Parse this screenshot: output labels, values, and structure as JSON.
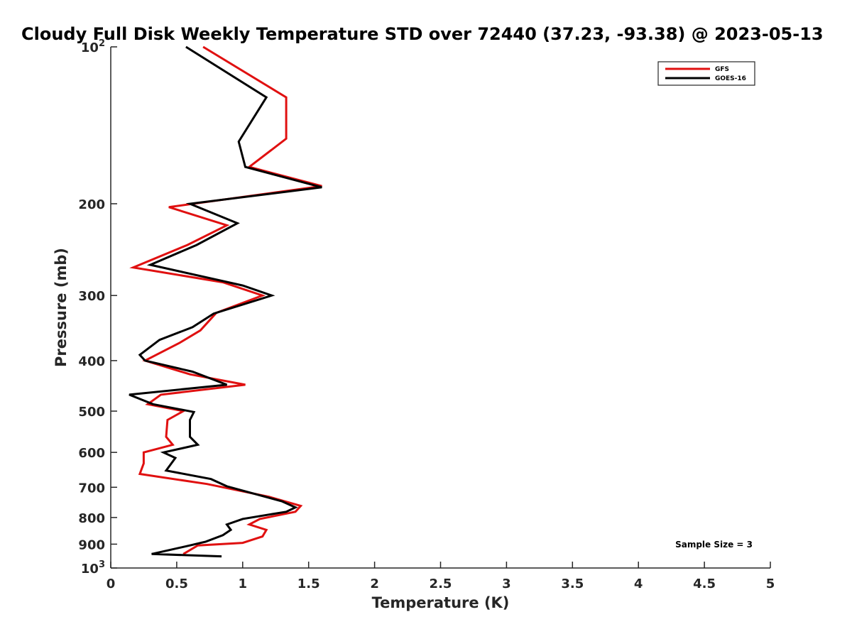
{
  "chart_data": {
    "type": "line",
    "title": "Cloudy Full Disk Weekly Temperature STD over 72440 (37.23, -93.38) @ 2023-05-13",
    "xlabel": "Temperature (K)",
    "ylabel": "Pressure (mb)",
    "xlim": [
      0,
      5
    ],
    "ylim": [
      100,
      1000
    ],
    "y_scale": "log",
    "y_reversed": true,
    "x_ticks": [
      {
        "value": 0,
        "label": "0"
      },
      {
        "value": 0.5,
        "label": "0.5"
      },
      {
        "value": 1,
        "label": "1"
      },
      {
        "value": 1.5,
        "label": "1.5"
      },
      {
        "value": 2,
        "label": "2"
      },
      {
        "value": 2.5,
        "label": "2.5"
      },
      {
        "value": 3,
        "label": "3"
      },
      {
        "value": 3.5,
        "label": "3.5"
      },
      {
        "value": 4,
        "label": "4"
      },
      {
        "value": 4.5,
        "label": "4.5"
      },
      {
        "value": 5,
        "label": "5"
      }
    ],
    "y_ticks": [
      {
        "value": 100,
        "label": "10",
        "sup": "2"
      },
      {
        "value": 200,
        "label": "200"
      },
      {
        "value": 300,
        "label": "300"
      },
      {
        "value": 400,
        "label": "400"
      },
      {
        "value": 500,
        "label": "500"
      },
      {
        "value": 600,
        "label": "600"
      },
      {
        "value": 700,
        "label": "700"
      },
      {
        "value": 800,
        "label": "800"
      },
      {
        "value": 900,
        "label": "900"
      },
      {
        "value": 1000,
        "label": "10",
        "sup": "3"
      }
    ],
    "grid": false,
    "legend_position": "top-right",
    "annotation": "Sample Size = 3",
    "series": [
      {
        "name": "GFS",
        "color": "#e01010",
        "points": [
          {
            "x": 0.7,
            "p": 100
          },
          {
            "x": 1.33,
            "p": 125
          },
          {
            "x": 1.33,
            "p": 150
          },
          {
            "x": 1.05,
            "p": 170
          },
          {
            "x": 1.6,
            "p": 185
          },
          {
            "x": 0.44,
            "p": 203
          },
          {
            "x": 0.88,
            "p": 220
          },
          {
            "x": 0.58,
            "p": 240
          },
          {
            "x": 0.17,
            "p": 265
          },
          {
            "x": 0.85,
            "p": 283
          },
          {
            "x": 1.15,
            "p": 300
          },
          {
            "x": 0.8,
            "p": 324
          },
          {
            "x": 0.68,
            "p": 350
          },
          {
            "x": 0.52,
            "p": 370
          },
          {
            "x": 0.26,
            "p": 400
          },
          {
            "x": 0.6,
            "p": 425
          },
          {
            "x": 1.02,
            "p": 445
          },
          {
            "x": 0.38,
            "p": 465
          },
          {
            "x": 0.28,
            "p": 485
          },
          {
            "x": 0.55,
            "p": 500
          },
          {
            "x": 0.43,
            "p": 520
          },
          {
            "x": 0.42,
            "p": 560
          },
          {
            "x": 0.47,
            "p": 580
          },
          {
            "x": 0.25,
            "p": 600
          },
          {
            "x": 0.25,
            "p": 630
          },
          {
            "x": 0.22,
            "p": 660
          },
          {
            "x": 0.73,
            "p": 690
          },
          {
            "x": 1.2,
            "p": 730
          },
          {
            "x": 1.44,
            "p": 760
          },
          {
            "x": 1.4,
            "p": 780
          },
          {
            "x": 1.13,
            "p": 805
          },
          {
            "x": 1.05,
            "p": 825
          },
          {
            "x": 1.18,
            "p": 845
          },
          {
            "x": 1.15,
            "p": 870
          },
          {
            "x": 1.0,
            "p": 895
          },
          {
            "x": 0.66,
            "p": 905
          },
          {
            "x": 0.55,
            "p": 940
          }
        ]
      },
      {
        "name": "GOES-16",
        "color": "#000000",
        "points": [
          {
            "x": 0.57,
            "p": 100
          },
          {
            "x": 1.18,
            "p": 125
          },
          {
            "x": 0.97,
            "p": 152
          },
          {
            "x": 1.02,
            "p": 170
          },
          {
            "x": 1.6,
            "p": 186
          },
          {
            "x": 0.6,
            "p": 200
          },
          {
            "x": 0.96,
            "p": 218
          },
          {
            "x": 0.65,
            "p": 240
          },
          {
            "x": 0.3,
            "p": 262
          },
          {
            "x": 1.0,
            "p": 287
          },
          {
            "x": 1.22,
            "p": 300
          },
          {
            "x": 0.78,
            "p": 325
          },
          {
            "x": 0.62,
            "p": 345
          },
          {
            "x": 0.37,
            "p": 365
          },
          {
            "x": 0.22,
            "p": 390
          },
          {
            "x": 0.26,
            "p": 400
          },
          {
            "x": 0.62,
            "p": 420
          },
          {
            "x": 0.88,
            "p": 445
          },
          {
            "x": 0.14,
            "p": 465
          },
          {
            "x": 0.32,
            "p": 485
          },
          {
            "x": 0.63,
            "p": 502
          },
          {
            "x": 0.6,
            "p": 520
          },
          {
            "x": 0.6,
            "p": 560
          },
          {
            "x": 0.66,
            "p": 580
          },
          {
            "x": 0.4,
            "p": 600
          },
          {
            "x": 0.49,
            "p": 615
          },
          {
            "x": 0.42,
            "p": 650
          },
          {
            "x": 0.76,
            "p": 675
          },
          {
            "x": 0.88,
            "p": 697
          },
          {
            "x": 1.3,
            "p": 745
          },
          {
            "x": 1.4,
            "p": 765
          },
          {
            "x": 1.33,
            "p": 780
          },
          {
            "x": 1.0,
            "p": 805
          },
          {
            "x": 0.88,
            "p": 825
          },
          {
            "x": 0.91,
            "p": 845
          },
          {
            "x": 0.85,
            "p": 865
          },
          {
            "x": 0.72,
            "p": 890
          },
          {
            "x": 0.6,
            "p": 905
          },
          {
            "x": 0.31,
            "p": 940
          },
          {
            "x": 0.84,
            "p": 950
          }
        ]
      }
    ]
  }
}
